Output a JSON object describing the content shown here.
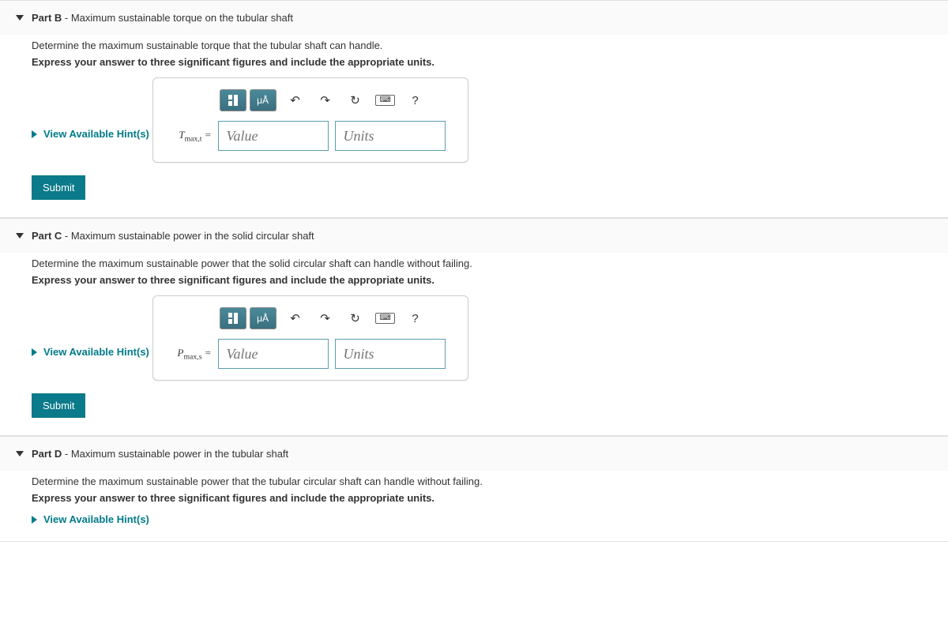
{
  "colors": {
    "accent": "#007b8a",
    "submit_bg": "#0b7a8a",
    "input_border": "#5a9fb0",
    "panel_border": "#ccc"
  },
  "parts": {
    "b": {
      "label": "Part B",
      "subtitle": " - Maximum sustainable torque on the tubular shaft",
      "prompt": "Determine the maximum sustainable torque that the tubular shaft can handle.",
      "instruction": "Express your answer to three significant figures and include the appropriate units.",
      "hint_label": "View Available Hint(s)",
      "var_html": "T<sub>max,t</sub> =",
      "value_placeholder": "Value",
      "units_placeholder": "Units",
      "submit_label": "Submit",
      "toolbar": {
        "symbols": "μÅ",
        "help": "?"
      }
    },
    "c": {
      "label": "Part C",
      "subtitle": " - Maximum sustainable power in the solid circular shaft",
      "prompt": "Determine the maximum sustainable power that the solid circular shaft can handle without failing.",
      "instruction": "Express your answer to three significant figures and include the appropriate units.",
      "hint_label": "View Available Hint(s)",
      "var_html": "P<sub>max,s</sub> =",
      "value_placeholder": "Value",
      "units_placeholder": "Units",
      "submit_label": "Submit",
      "toolbar": {
        "symbols": "μÅ",
        "help": "?"
      }
    },
    "d": {
      "label": "Part D",
      "subtitle": " - Maximum sustainable power in the tubular shaft",
      "prompt": "Determine the maximum sustainable power that the tubular circular shaft can handle without failing.",
      "instruction": "Express your answer to three significant figures and include the appropriate units.",
      "hint_label": "View Available Hint(s)"
    }
  }
}
